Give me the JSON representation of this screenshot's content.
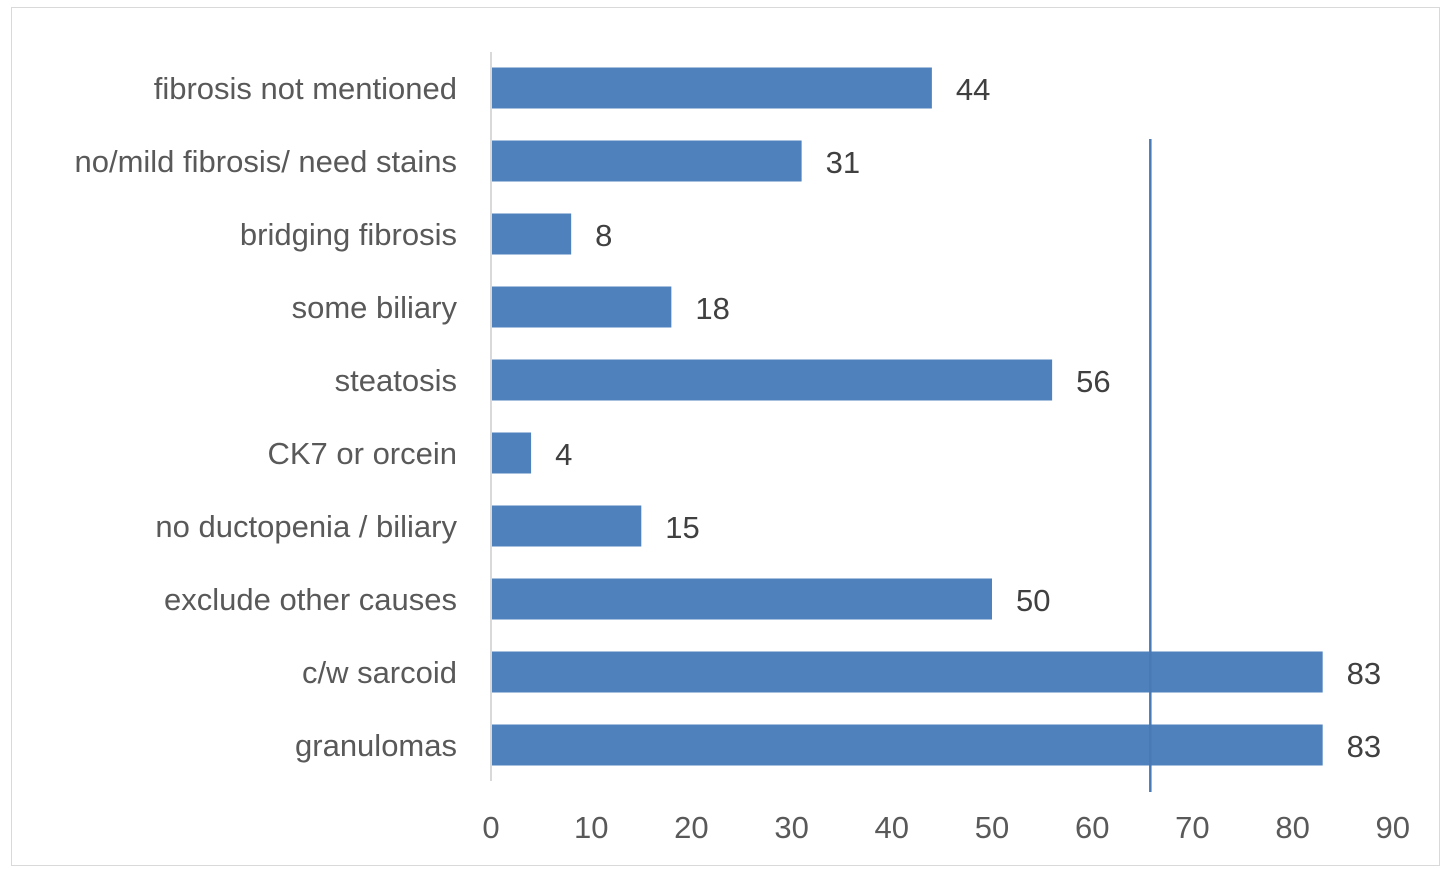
{
  "chart_data": {
    "type": "bar",
    "orientation": "horizontal",
    "categories": [
      "fibrosis not mentioned",
      "no/mild fibrosis/ need stains",
      "bridging fibrosis",
      "some biliary",
      "steatosis",
      "CK7 or orcein",
      "no ductopenia / biliary",
      "exclude other causes",
      "c/w sarcoid",
      "granulomas"
    ],
    "values": [
      44,
      31,
      8,
      18,
      56,
      4,
      15,
      50,
      83,
      83
    ],
    "xlim": [
      0,
      90
    ],
    "xticks": [
      0,
      10,
      20,
      30,
      40,
      50,
      60,
      70,
      80,
      90
    ],
    "reference_line_x": 65.8,
    "title": "",
    "xlabel": "",
    "ylabel": "",
    "grid": false,
    "legend": "none",
    "colors": {
      "bar": "#4f81bd",
      "reference_line": "#4a7ab5",
      "axis": "#d9d9d9",
      "text": "#595959",
      "value_text": "#404040"
    }
  }
}
